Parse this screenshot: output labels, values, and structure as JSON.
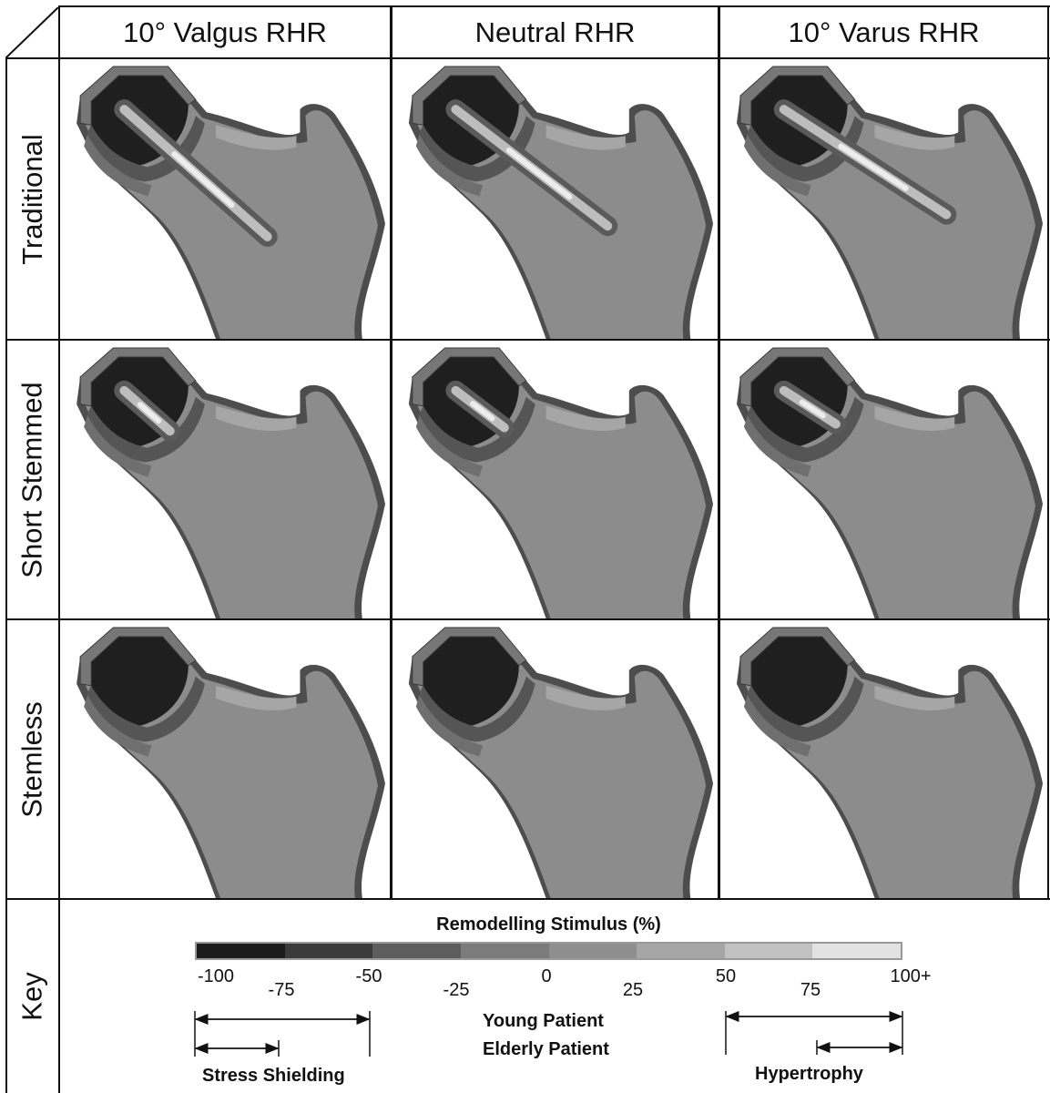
{
  "columns": [
    "10° Valgus RHR",
    "Neutral RHR",
    "10° Varus RHR"
  ],
  "rows": [
    "Traditional",
    "Short Stemmed",
    "Stemless",
    "Key"
  ],
  "key": {
    "title": "Remodelling Stimulus (%)",
    "colors": [
      "#1c1c1c",
      "#3b3b3b",
      "#5d5d5d",
      "#7b7b7b",
      "#8e8e8e",
      "#a6a6a6",
      "#c2c2c2",
      "#e2e2e2"
    ],
    "ticks": [
      "-100",
      "-75",
      "-50",
      "-25",
      "0",
      "25",
      "50",
      "75",
      "100+"
    ],
    "young_patient": "Young Patient",
    "elderly_patient": "Elderly Patient",
    "stress_shielding": "Stress Shielding",
    "hypertrophy": "Hypertrophy"
  }
}
